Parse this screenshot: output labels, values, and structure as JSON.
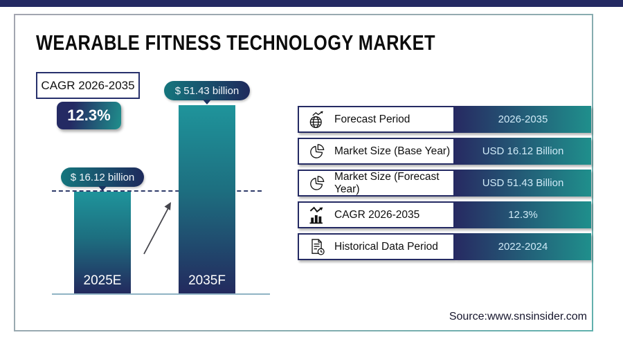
{
  "page": {
    "title": "WEARABLE FITNESS TECHNOLOGY MARKET",
    "source": "Source:www.snsinsider.com"
  },
  "cagr": {
    "label": "CAGR 2026-2035",
    "value": "12.3%"
  },
  "chart_data": {
    "type": "bar",
    "categories": [
      "2025E",
      "2035F"
    ],
    "values": [
      16.12,
      51.43
    ],
    "unit": "USD Billion",
    "data_labels": [
      "$ 16.12 billion",
      "$ 51.43 billion"
    ],
    "title": "WEARABLE FITNESS TECHNOLOGY MARKET",
    "xlabel": "",
    "ylabel": "",
    "grid": false,
    "legend": false,
    "annotations": [
      "CAGR 2026-2035: 12.3%",
      "dashed reference line at 2025E level",
      "growth arrow between bars"
    ]
  },
  "table": {
    "rows": [
      {
        "icon": "globe-trend-icon",
        "label": "Forecast Period",
        "value": "2026-2035"
      },
      {
        "icon": "pie-chart-icon",
        "label": "Market Size (Base Year)",
        "value": "USD 16.12 Billion"
      },
      {
        "icon": "pie-chart-icon",
        "label": "Market Size (Forecast Year)",
        "value": "USD 51.43 Billion"
      },
      {
        "icon": "bar-chart-trend-icon",
        "label": "CAGR 2026-2035",
        "value": "12.3%"
      },
      {
        "icon": "document-clock-icon",
        "label": "Historical Data Period",
        "value": "2022-2024"
      }
    ]
  },
  "colors": {
    "navy": "#242a63",
    "teal": "#1f8f8c",
    "value_text": "#cfeaf7",
    "baseline": "#8fb3c4"
  }
}
